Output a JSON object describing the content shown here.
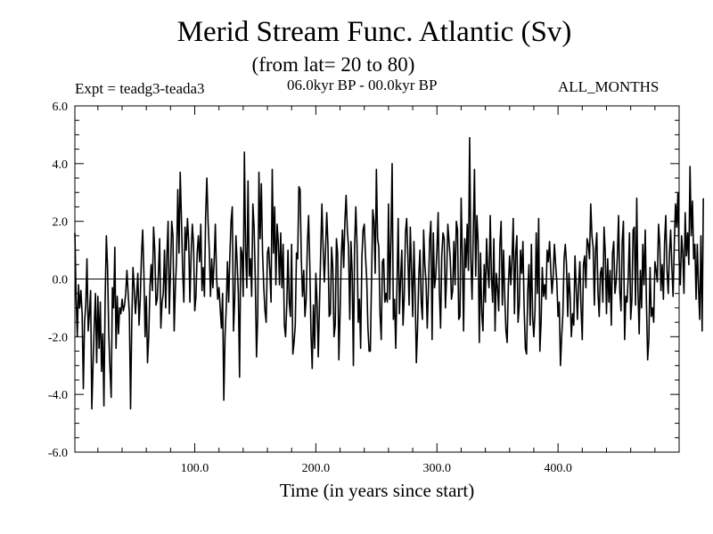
{
  "chart_data": {
    "type": "line",
    "title": "Merid Stream Func. Atlantic (Sv)",
    "subtitle": "(from lat= 20 to 80)",
    "left_label": "Expt = teadg3-teada3",
    "center_label": "06.0kyr BP - 00.0kyr BP",
    "right_label": "ALL_MONTHS",
    "xlabel": "Time (in years since start)",
    "ylabel": "",
    "xlim": [
      1,
      500
    ],
    "ylim": [
      -6.0,
      6.0
    ],
    "xticks": [
      100.0,
      200.0,
      300.0,
      400.0
    ],
    "xtick_labels": [
      "100.0",
      "200.0",
      "300.0",
      "400.0"
    ],
    "yticks": [
      -6.0,
      -4.0,
      -2.0,
      0.0,
      2.0,
      4.0,
      6.0
    ],
    "ytick_labels": [
      "-6.0",
      "-4.0",
      "-2.0",
      "0.0",
      "2.0",
      "4.0",
      "6.0"
    ],
    "reference_line": 0.0,
    "series": [
      {
        "name": "teadg3-teada3",
        "x_start": 1,
        "x_step": 1,
        "values": [
          1.6,
          -0.6,
          -2.0,
          -0.2,
          -1.0,
          -0.4,
          -1.2,
          -3.8,
          -1.5,
          -0.9,
          0.7,
          -1.8,
          -1.2,
          -0.4,
          -4.5,
          -3.0,
          -1.6,
          -0.5,
          -2.9,
          -0.6,
          -2.4,
          -0.8,
          -3.2,
          -1.9,
          -4.4,
          -0.7,
          1.5,
          0.4,
          -1.9,
          -3.1,
          -4.1,
          -0.3,
          -1.0,
          1.1,
          -2.4,
          -0.6,
          -1.9,
          -1.0,
          -1.2,
          -0.7,
          -1.1,
          -0.9,
          -0.5,
          0.3,
          -0.5,
          -1.2,
          -4.5,
          -1.5,
          0.4,
          -0.3,
          -1.2,
          -0.6,
          0.2,
          -1.6,
          -0.7,
          0.8,
          1.7,
          0.2,
          -2.0,
          -0.6,
          -2.9,
          -2.0,
          -0.3,
          0.5,
          -0.4,
          1.8,
          1.0,
          -0.9,
          -0.7,
          0.2,
          1.4,
          -1.7,
          -0.8,
          -0.5,
          1.0,
          -1.0,
          0.8,
          2.0,
          -1.2,
          0.3,
          2.0,
          1.5,
          -1.8,
          -0.3,
          0.7,
          3.1,
          0.9,
          3.7,
          2.1,
          0.3,
          -0.8,
          1.8,
          1.0,
          2.1,
          1.3,
          -0.8,
          0.9,
          1.9,
          1.2,
          -1.1,
          -0.6,
          0.9,
          1.5,
          0.6,
          1.9,
          -0.4,
          0.4,
          -0.6,
          2.2,
          3.5,
          2.0,
          1.0,
          -0.6,
          0.7,
          -0.3,
          0.6,
          1.9,
          0.1,
          -0.7,
          -0.3,
          -1.0,
          -1.7,
          -0.5,
          -4.2,
          -2.0,
          -1.0,
          0.6,
          -0.8,
          0.8,
          2.0,
          2.5,
          -1.8,
          -0.7,
          1.5,
          0.6,
          -0.5,
          -3.4,
          1.1,
          0.9,
          -0.6,
          4.4,
          1.0,
          -0.3,
          3.4,
          0.1,
          0.7,
          -0.6,
          2.6,
          1.8,
          0.0,
          -2.7,
          -1.3,
          3.7,
          1.4,
          3.3,
          0.9,
          -0.3,
          -1.1,
          -1.5,
          0.9,
          1.1,
          0.3,
          -0.8,
          3.8,
          0.9,
          2.5,
          -0.2,
          1.9,
          1.3,
          -0.2,
          1.6,
          -0.3,
          1.2,
          -1.6,
          -2.0,
          -0.9,
          1.0,
          -0.8,
          -1.3,
          1.2,
          -2.6,
          -2.2,
          -1.6,
          0.9,
          0.7,
          3.2,
          3.1,
          0.7,
          -0.6,
          0.3,
          -1.3,
          -0.7,
          1.2,
          2.2,
          0.5,
          -1.9,
          -3.1,
          -0.9,
          -2.4,
          0.2,
          -0.8,
          -2.7,
          -0.9,
          0.9,
          2.6,
          1.1,
          -0.1,
          1.0,
          2.3,
          1.2,
          -1.3,
          -1.2,
          1.1,
          0.4,
          -2.0,
          -1.6,
          1.4,
          0.9,
          -2.8,
          -1.2,
          0.8,
          1.7,
          0.4,
          2.0,
          2.9,
          1.7,
          1.1,
          -1.4,
          1.3,
          0.2,
          -3.0,
          1.1,
          2.5,
          1.2,
          -1.5,
          -0.7,
          -2.4,
          0.7,
          1.7,
          1.9,
          0.8,
          0.0,
          -1.7,
          -2.5,
          -2.5,
          0.0,
          2.4,
          2.0,
          0.2,
          3.8,
          1.4,
          1.1,
          -1.2,
          -2.1,
          0.6,
          0.7,
          -0.8,
          -0.5,
          -0.8,
          2.6,
          -0.7,
          1.4,
          4.0,
          -1.4,
          -0.7,
          -2.4,
          -0.2,
          2.1,
          -1.2,
          0.0,
          1.0,
          -1.6,
          -0.6,
          1.6,
          2.1,
          0.8,
          -0.9,
          1.8,
          0.3,
          -1.3,
          1.3,
          -0.5,
          -2.9,
          -1.7,
          0.1,
          1.0,
          -0.8,
          -1.4,
          1.7,
          0.5,
          -0.1,
          -1.7,
          -0.3,
          1.4,
          2.0,
          -2.1,
          1.6,
          -0.3,
          0.1,
          1.0,
          2.3,
          -0.4,
          -1.7,
          0.8,
          1.6,
          1.4,
          -1.0,
          0.1,
          1.9,
          1.3,
          0.7,
          -0.7,
          -0.4,
          1.3,
          -0.2,
          2.0,
          1.7,
          -1.4,
          -1.3,
          2.8,
          0.8,
          -1.8,
          1.4,
          0.4,
          1.9,
          0.3,
          4.9,
          0.7,
          -0.7,
          1.6,
          3.8,
          0.1,
          2.2,
          1.3,
          -2.2,
          0.9,
          -1.2,
          -1.8,
          0.5,
          -0.8,
          1.4,
          0.3,
          -0.3,
          2.2,
          0.1,
          -0.8,
          1.4,
          -1.8,
          0.2,
          -0.3,
          -1.1,
          1.2,
          2.0,
          -0.9,
          1.0,
          -0.6,
          -1.8,
          -2.2,
          -0.2,
          0.8,
          -0.2,
          0.7,
          2.1,
          -1.2,
          0.9,
          1.5,
          -1.5,
          -0.9,
          1.0,
          0.2,
          1.3,
          -1.0,
          -2.4,
          -2.6,
          -0.4,
          0.5,
          -1.6,
          1.2,
          -1.3,
          -2.0,
          -1.1,
          1.6,
          -0.5,
          2.1,
          -2.5,
          -1.5,
          0.4,
          -0.6,
          -0.2,
          -0.7,
          1.0,
          0.6,
          1.3,
          0.3,
          -0.5,
          0.1,
          1.2,
          0.5,
          -0.1,
          -1.3,
          -0.8,
          -3.0,
          -2.0,
          -1.2,
          0.7,
          1.2,
          0.5,
          -1.3,
          0.2,
          -0.6,
          -2.0,
          -1.2,
          -1.6,
          0.8,
          -0.3,
          -1.4,
          -0.2,
          0.6,
          -1.0,
          -2.1,
          0.5,
          0.8,
          -0.3,
          1.4,
          1.2,
          0.7,
          2.6,
          1.5,
          1.1,
          -0.9,
          1.0,
          1.6,
          -0.5,
          -1.3,
          0.2,
          0.4,
          -0.8,
          1.8,
          0.9,
          -1.2,
          0.7,
          -0.8,
          0.3,
          -1.6,
          0.9,
          1.3,
          -0.5,
          -0.1,
          0.8,
          2.2,
          -0.4,
          -1.1,
          1.3,
          2.0,
          -2.1,
          -0.6,
          -0.8,
          0.1,
          1.6,
          -1.4,
          -0.7,
          1.7,
          1.8,
          -0.9,
          2.8,
          -0.4,
          -1.9,
          0.3,
          -1.0,
          1.2,
          -0.2,
          1.7,
          -0.8,
          -2.8,
          -2.1,
          0.4,
          -1.3,
          -1.0,
          -1.5,
          0.6,
          0.3,
          -0.1,
          1.9,
          1.2,
          -0.4,
          0.5,
          -0.7,
          1.3,
          2.2,
          0.3,
          -0.5,
          0.9,
          1.7,
          0.4,
          -0.6,
          1.2,
          2.6,
          1.8,
          3.0,
          0.7,
          -0.2,
          1.5,
          0.9,
          -0.5,
          2.3,
          0.8,
          1.6,
          0.5,
          3.9,
          1.5,
          2.7,
          0.7,
          1.2,
          -0.7,
          1.2,
          -0.3,
          -1.4,
          1.5,
          -1.8,
          2.8
        ]
      }
    ]
  }
}
